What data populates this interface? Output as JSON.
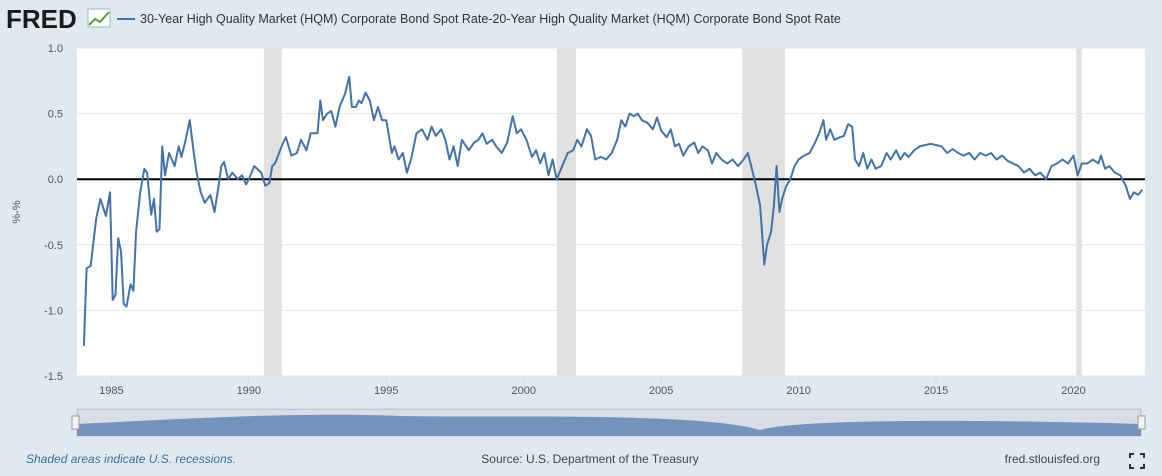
{
  "logo": "FRED",
  "footer": {
    "note": "Shaded areas indicate U.S. recessions.",
    "source": "Source: U.S. Department of the Treasury",
    "site": "fred.stlouisfed.org"
  },
  "chart_data": {
    "type": "line",
    "ylabel": "%-%",
    "xlim": [
      1983.75,
      2022.6
    ],
    "ylim": [
      -1.5,
      1.0
    ],
    "xticks": [
      1985,
      1990,
      1995,
      2000,
      2005,
      2010,
      2015,
      2020
    ],
    "yticks": [
      {
        "value": 1.0,
        "label": "1.0"
      },
      0.5,
      {
        "value": 0,
        "label": "0.0"
      },
      -0.5,
      {
        "value": -1.0,
        "label": "-1.0"
      },
      -1.5
    ],
    "grid": true,
    "recessions": [
      [
        1990.55,
        1991.2
      ],
      [
        2001.2,
        2001.9
      ],
      [
        2007.95,
        2009.5
      ],
      [
        2020.1,
        2020.3
      ]
    ],
    "x": [
      1984.0,
      1984.1,
      1984.25,
      1984.45,
      1984.6,
      1984.8,
      1984.95,
      1985.05,
      1985.15,
      1985.25,
      1985.35,
      1985.45,
      1985.55,
      1985.7,
      1985.8,
      1985.9,
      1986.05,
      1986.2,
      1986.3,
      1986.45,
      1986.55,
      1986.65,
      1986.75,
      1986.85,
      1986.95,
      1987.1,
      1987.3,
      1987.45,
      1987.55,
      1987.7,
      1987.85,
      1988.0,
      1988.1,
      1988.25,
      1988.4,
      1988.6,
      1988.75,
      1988.9,
      1989.0,
      1989.1,
      1989.25,
      1989.4,
      1989.6,
      1989.75,
      1989.9,
      1990.0,
      1990.2,
      1990.45,
      1990.6,
      1990.75,
      1990.85,
      1990.95,
      1991.1,
      1991.25,
      1991.35,
      1991.55,
      1991.75,
      1991.9,
      1992.1,
      1992.25,
      1992.5,
      1992.6,
      1992.7,
      1992.85,
      1993.0,
      1993.15,
      1993.3,
      1993.5,
      1993.65,
      1993.75,
      1993.9,
      1994.0,
      1994.1,
      1994.25,
      1994.4,
      1994.55,
      1994.7,
      1994.85,
      1995.0,
      1995.2,
      1995.3,
      1995.45,
      1995.6,
      1995.75,
      1995.9,
      1996.1,
      1996.3,
      1996.5,
      1996.65,
      1996.8,
      1997.0,
      1997.15,
      1997.3,
      1997.45,
      1997.6,
      1997.75,
      1998.0,
      1998.2,
      1998.35,
      1998.5,
      1998.65,
      1998.85,
      1999.0,
      1999.2,
      1999.4,
      1999.6,
      1999.75,
      1999.9,
      2000.1,
      2000.3,
      2000.45,
      2000.6,
      2000.75,
      2000.9,
      2001.05,
      2001.2,
      2001.4,
      2001.6,
      2001.8,
      2001.95,
      2002.1,
      2002.3,
      2002.45,
      2002.6,
      2002.8,
      2003.0,
      2003.2,
      2003.4,
      2003.55,
      2003.7,
      2003.85,
      2004.0,
      2004.15,
      2004.3,
      2004.5,
      2004.7,
      2004.85,
      2005.0,
      2005.2,
      2005.35,
      2005.5,
      2005.65,
      2005.8,
      2006.0,
      2006.2,
      2006.35,
      2006.5,
      2006.7,
      2006.85,
      2007.0,
      2007.2,
      2007.4,
      2007.6,
      2007.8,
      2008.0,
      2008.15,
      2008.3,
      2008.45,
      2008.6,
      2008.75,
      2008.85,
      2009.0,
      2009.1,
      2009.2,
      2009.3,
      2009.4,
      2009.55,
      2009.7,
      2009.85,
      2010.0,
      2010.2,
      2010.4,
      2010.6,
      2010.75,
      2010.9,
      2011.0,
      2011.15,
      2011.3,
      2011.5,
      2011.65,
      2011.8,
      2011.95,
      2012.05,
      2012.2,
      2012.35,
      2012.5,
      2012.65,
      2012.8,
      2013.0,
      2013.2,
      2013.35,
      2013.55,
      2013.7,
      2013.85,
      2014.0,
      2014.2,
      2014.4,
      2014.6,
      2014.8,
      2015.0,
      2015.2,
      2015.4,
      2015.6,
      2015.8,
      2016.0,
      2016.2,
      2016.4,
      2016.6,
      2016.8,
      2017.0,
      2017.2,
      2017.4,
      2017.6,
      2017.8,
      2018.0,
      2018.2,
      2018.4,
      2018.6,
      2018.8,
      2019.0,
      2019.2,
      2019.4,
      2019.6,
      2019.8,
      2020.0,
      2020.15,
      2020.3,
      2020.5,
      2020.7,
      2020.9,
      2021.0,
      2021.15,
      2021.3,
      2021.5,
      2021.7,
      2021.9,
      2022.05,
      2022.2,
      2022.35,
      2022.5
    ],
    "series": [
      {
        "name": "30-Year High Quality Market (HQM) Corporate Bond Spot Rate-20-Year High Quality Market (HQM) Corporate Bond Spot Rate",
        "color": "#4572a7",
        "values": [
          -1.27,
          -0.68,
          -0.66,
          -0.3,
          -0.15,
          -0.28,
          -0.1,
          -0.92,
          -0.88,
          -0.45,
          -0.55,
          -0.95,
          -0.97,
          -0.8,
          -0.85,
          -0.4,
          -0.1,
          0.08,
          0.05,
          -0.27,
          -0.15,
          -0.4,
          -0.38,
          0.25,
          0.03,
          0.2,
          0.1,
          0.25,
          0.17,
          0.3,
          0.45,
          0.2,
          0.05,
          -0.1,
          -0.18,
          -0.12,
          -0.25,
          -0.05,
          0.1,
          0.13,
          0.0,
          0.05,
          0.0,
          0.03,
          -0.04,
          0.0,
          0.1,
          0.05,
          -0.05,
          -0.03,
          0.1,
          0.12,
          0.2,
          0.28,
          0.32,
          0.18,
          0.2,
          0.3,
          0.22,
          0.35,
          0.35,
          0.6,
          0.45,
          0.5,
          0.52,
          0.4,
          0.55,
          0.65,
          0.78,
          0.55,
          0.55,
          0.6,
          0.58,
          0.66,
          0.6,
          0.45,
          0.55,
          0.45,
          0.45,
          0.2,
          0.25,
          0.15,
          0.2,
          0.05,
          0.15,
          0.35,
          0.38,
          0.3,
          0.4,
          0.33,
          0.38,
          0.3,
          0.15,
          0.25,
          0.1,
          0.3,
          0.22,
          0.28,
          0.3,
          0.35,
          0.27,
          0.3,
          0.25,
          0.2,
          0.28,
          0.48,
          0.35,
          0.38,
          0.3,
          0.17,
          0.22,
          0.12,
          0.2,
          0.03,
          0.15,
          0.0,
          0.1,
          0.2,
          0.22,
          0.3,
          0.25,
          0.38,
          0.33,
          0.15,
          0.17,
          0.15,
          0.2,
          0.3,
          0.45,
          0.4,
          0.5,
          0.48,
          0.5,
          0.45,
          0.43,
          0.38,
          0.47,
          0.37,
          0.32,
          0.38,
          0.25,
          0.27,
          0.18,
          0.25,
          0.28,
          0.2,
          0.25,
          0.22,
          0.12,
          0.2,
          0.15,
          0.12,
          0.15,
          0.1,
          0.15,
          0.2,
          0.08,
          -0.05,
          -0.2,
          -0.65,
          -0.5,
          -0.4,
          -0.2,
          0.1,
          -0.25,
          -0.15,
          -0.05,
          0.0,
          0.1,
          0.15,
          0.18,
          0.2,
          0.28,
          0.35,
          0.45,
          0.3,
          0.38,
          0.3,
          0.32,
          0.33,
          0.42,
          0.4,
          0.15,
          0.1,
          0.2,
          0.08,
          0.15,
          0.08,
          0.1,
          0.2,
          0.15,
          0.22,
          0.15,
          0.2,
          0.17,
          0.22,
          0.25,
          0.26,
          0.27,
          0.26,
          0.25,
          0.2,
          0.23,
          0.2,
          0.18,
          0.2,
          0.15,
          0.2,
          0.18,
          0.2,
          0.15,
          0.18,
          0.14,
          0.12,
          0.1,
          0.05,
          0.08,
          0.03,
          0.05,
          0.0,
          0.1,
          0.12,
          0.15,
          0.12,
          0.18,
          0.03,
          0.12,
          0.12,
          0.15,
          0.12,
          0.18,
          0.08,
          0.1,
          0.05,
          0.03,
          -0.05,
          -0.15,
          -0.1,
          -0.12,
          -0.08
        ]
      }
    ]
  }
}
